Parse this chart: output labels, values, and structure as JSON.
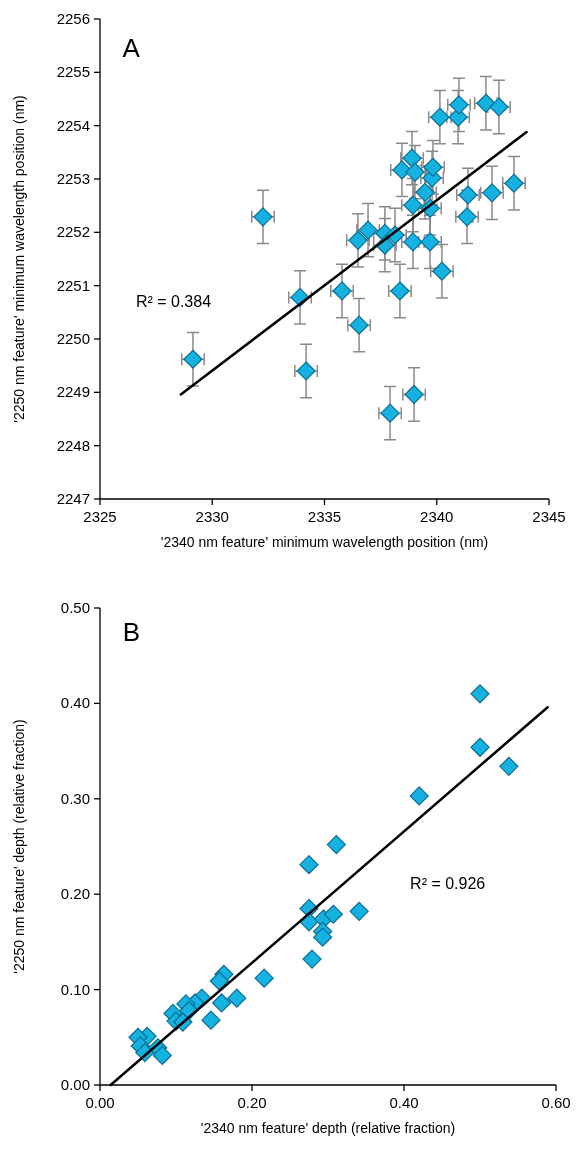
{
  "chart_data": [
    {
      "type": "scatter",
      "title": "A",
      "xlabel": "'2340 nm feature' minimum wavelength position (nm)",
      "ylabel": "'2250 nm feature' minimum wavelength position (nm)",
      "xlim": [
        2325,
        2345
      ],
      "xticks": [
        2325,
        2330,
        2335,
        2340,
        2345
      ],
      "ylim": [
        2247,
        2256
      ],
      "yticks": [
        2247,
        2248,
        2249,
        2250,
        2251,
        2252,
        2253,
        2254,
        2255,
        2256
      ],
      "grid": false,
      "annotations": [
        "R² = 0.384"
      ],
      "series": [
        {
          "color": "#15b1e0",
          "marker": "diamond",
          "x": [
            2329.14,
            2332.26,
            2333.91,
            2334.18,
            2335.78,
            2336.54,
            2336.49,
            2336.94,
            2337.69,
            2337.69,
            2338.14,
            2338.94,
            2339.7,
            2338.94,
            2339.7,
            2339.48,
            2339.79,
            2339.83,
            2338.45,
            2338.9,
            2339.03,
            2340.14,
            2340.95,
            2340.99,
            2342.19,
            2342.77,
            2341.39,
            2341.35,
            2342.46,
            2343.44,
            2338.36,
            2340.23,
            2337.92,
            2338.99
          ],
          "values": [
            2249.62,
            2252.29,
            2250.78,
            2249.4,
            2250.9,
            2250.26,
            2251.85,
            2252.04,
            2251.98,
            2251.76,
            2251.95,
            2251.82,
            2251.82,
            2252.51,
            2252.45,
            2252.75,
            2253.02,
            2253.22,
            2253.17,
            2253.39,
            2253.13,
            2254.16,
            2254.16,
            2254.39,
            2254.42,
            2254.35,
            2252.7,
            2252.29,
            2252.74,
            2252.92,
            2250.9,
            2251.27,
            2248.61,
            2248.96
          ],
          "errors": [
            0.5,
            0.5,
            0.5,
            0.5,
            0.5,
            0.5,
            0.5,
            0.5,
            0.5,
            0.5,
            0.5,
            0.5,
            0.5,
            0.5,
            0.5,
            0.5,
            0.5,
            0.5,
            0.5,
            0.5,
            0.5,
            0.5,
            0.5,
            0.5,
            0.5,
            0.5,
            0.5,
            0.5,
            0.5,
            0.5,
            0.5,
            0.5,
            0.5,
            0.5
          ],
          "xerrors": [
            0.5,
            0.5,
            0.5,
            0.5,
            0.5,
            0.5,
            0.5,
            0.5,
            0.5,
            0.5,
            0.5,
            0.5,
            0.5,
            0.5,
            0.5,
            0.5,
            0.5,
            0.5,
            0.5,
            0.5,
            0.5,
            0.5,
            0.5,
            0.5,
            0.5,
            0.5,
            0.5,
            0.5,
            0.5,
            0.5,
            0.5,
            0.5,
            0.5,
            0.5
          ]
        },
        {
          "type": "line",
          "color": "#000000",
          "marker": "none",
          "line_style": "solid",
          "x": [
            2328.6,
            2344.0
          ],
          "values": [
            2248.96,
            2253.88
          ]
        }
      ]
    },
    {
      "type": "scatter",
      "title": "B",
      "xlabel": "'2340 nm feature' depth (relative fraction)",
      "ylabel": "'2250 nm feature' depth (relative fraction)",
      "xlim": [
        0,
        0.6
      ],
      "xticks": [
        {
          "value": 0,
          "label": "0.00"
        },
        {
          "value": 0.2,
          "label": "0.20"
        },
        {
          "value": 0.4,
          "label": "0.40"
        },
        {
          "value": 0.6,
          "label": "0.60"
        }
      ],
      "ylim": [
        0,
        0.5
      ],
      "yticks": [
        {
          "value": 0,
          "label": "0.00"
        },
        {
          "value": 0.1,
          "label": "0.10"
        },
        {
          "value": 0.2,
          "label": "0.20"
        },
        {
          "value": 0.3,
          "label": "0.30"
        },
        {
          "value": 0.4,
          "label": "0.40"
        },
        {
          "value": 0.5,
          "label": "0.50"
        }
      ],
      "grid": false,
      "annotations": [
        "R² = 0.926"
      ],
      "series": [
        {
          "color": "#15b1e0",
          "marker": "diamond",
          "x": [
            0.5,
            0.5,
            0.538,
            0.42,
            0.311,
            0.275,
            0.275,
            0.275,
            0.294,
            0.307,
            0.341,
            0.293,
            0.293,
            0.279,
            0.216,
            0.163,
            0.157,
            0.18,
            0.16,
            0.146,
            0.134,
            0.125,
            0.113,
            0.117,
            0.096,
            0.1,
            0.109,
            0.062,
            0.05,
            0.053,
            0.059,
            0.076,
            0.082
          ],
          "values": [
            0.41,
            0.354,
            0.334,
            0.303,
            0.252,
            0.231,
            0.185,
            0.171,
            0.174,
            0.179,
            0.182,
            0.161,
            0.155,
            0.132,
            0.112,
            0.116,
            0.109,
            0.091,
            0.086,
            0.068,
            0.091,
            0.086,
            0.085,
            0.078,
            0.075,
            0.067,
            0.066,
            0.051,
            0.05,
            0.041,
            0.034,
            0.039,
            0.031
          ]
        },
        {
          "type": "line",
          "color": "#000000",
          "marker": "none",
          "line_style": "solid",
          "x": [
            0.014,
            0.589
          ],
          "values": [
            0.0,
            0.396
          ]
        }
      ]
    }
  ]
}
